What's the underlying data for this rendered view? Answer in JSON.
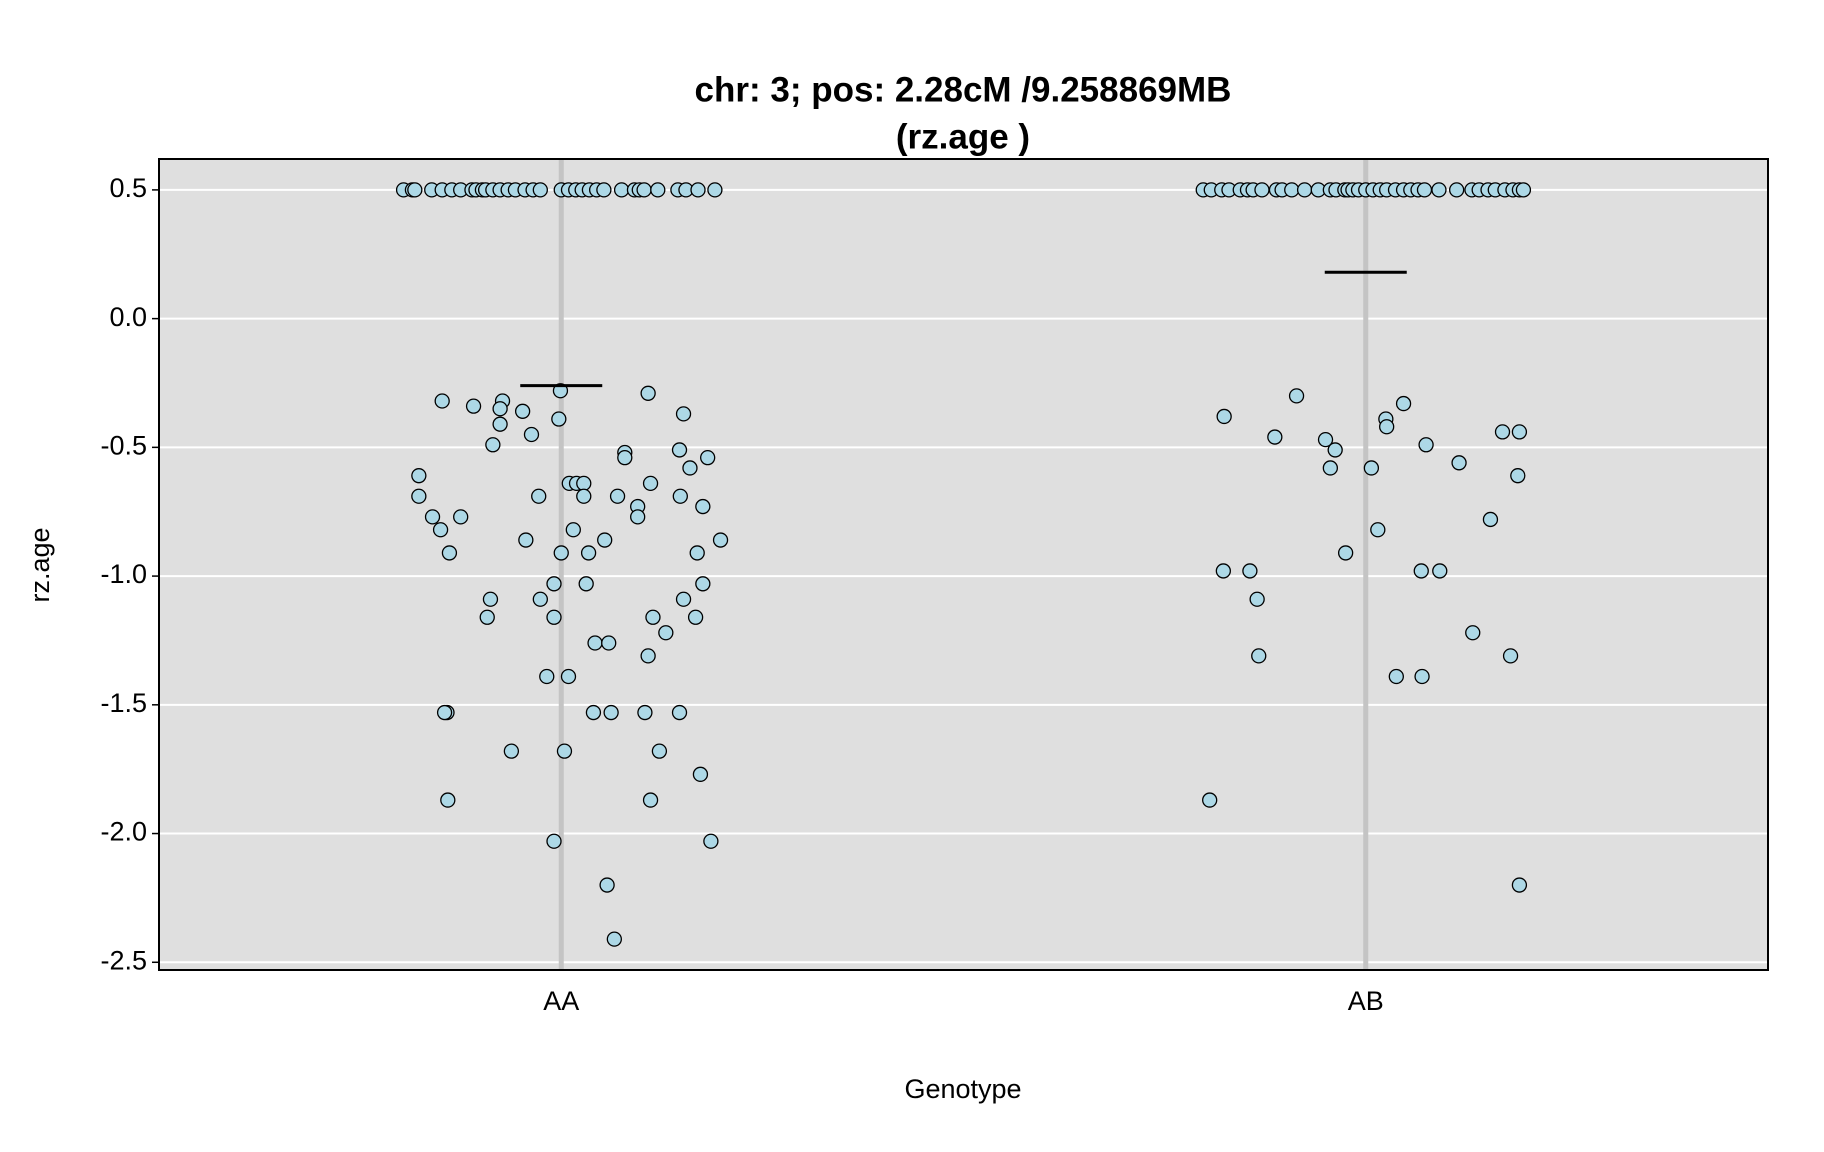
{
  "chart_data": {
    "type": "scatter",
    "title": [
      "chr: 3; pos: 2.28cM /9.258869MB",
      "(rz.age )"
    ],
    "x_label": "Genotype",
    "y_label": "rz.age",
    "xlim": [
      0.5,
      2.5
    ],
    "xticks": [
      {
        "value": 1,
        "label": "AA"
      },
      {
        "value": 2,
        "label": "AB"
      }
    ],
    "ylim": [
      -2.53,
      0.62
    ],
    "yticks": [
      0.5,
      {
        "value": 0,
        "label": "0.0"
      },
      -0.5,
      {
        "value": -1,
        "label": "-1.0"
      },
      -1.5,
      {
        "value": -2,
        "label": "-2.0"
      },
      -2.5
    ],
    "grid": true,
    "background": "#dfdfdf",
    "means": [
      -0.26,
      0.18
    ],
    "mean_color": "#000000",
    "series": [
      {
        "color": "#add8e6",
        "x": [
          0.804,
          0.815,
          0.818,
          0.839,
          0.852,
          0.864,
          0.875,
          0.889,
          0.894,
          0.902,
          0.906,
          0.915,
          0.924,
          0.934,
          0.943,
          0.955,
          0.965,
          0.974,
          1.0,
          1.009,
          1.018,
          1.026,
          1.035,
          1.044,
          1.053,
          1.075,
          1.091,
          1.097,
          1.103,
          1.12,
          1.145,
          1.155,
          1.17,
          1.191,
          0.852,
          0.823,
          0.823,
          0.84,
          0.85,
          0.875,
          0.861,
          0.891,
          0.927,
          0.924,
          0.924,
          0.915,
          0.952,
          0.963,
          0.999,
          0.997,
          0.972,
          0.956,
          0.912,
          0.908,
          0.974,
          0.991,
          0.991,
          1.0,
          1.015,
          1.01,
          1.019,
          1.028,
          1.028,
          1.034,
          1.031,
          1.054,
          1.042,
          1.059,
          0.982,
          1.009,
          1.04,
          1.062,
          0.858,
          0.855,
          0.938,
          1.004,
          0.859,
          0.991,
          1.057,
          1.066,
          1.079,
          1.079,
          1.07,
          1.095,
          1.095,
          1.108,
          1.111,
          1.114,
          1.13,
          1.108,
          1.104,
          1.122,
          1.111,
          1.152,
          1.147,
          1.16,
          1.182,
          1.148,
          1.176,
          1.198,
          1.169,
          1.176,
          1.152,
          1.167,
          1.147,
          1.173,
          1.186
        ],
        "values": [
          0.5,
          0.5,
          0.5,
          0.5,
          0.5,
          0.5,
          0.5,
          0.5,
          0.5,
          0.5,
          0.5,
          0.5,
          0.5,
          0.5,
          0.5,
          0.5,
          0.5,
          0.5,
          0.5,
          0.5,
          0.5,
          0.5,
          0.5,
          0.5,
          0.5,
          0.5,
          0.5,
          0.5,
          0.5,
          0.5,
          0.5,
          0.5,
          0.5,
          0.5,
          -0.32,
          -0.61,
          -0.69,
          -0.77,
          -0.82,
          -0.77,
          -0.91,
          -0.34,
          -0.32,
          -0.35,
          -0.41,
          -0.49,
          -0.36,
          -0.45,
          -0.28,
          -0.39,
          -0.69,
          -0.86,
          -1.09,
          -1.16,
          -1.09,
          -1.03,
          -1.16,
          -0.91,
          -0.82,
          -0.64,
          -0.64,
          -0.64,
          -0.69,
          -0.91,
          -1.03,
          -0.86,
          -1.26,
          -1.26,
          -1.39,
          -1.39,
          -1.53,
          -1.53,
          -1.53,
          -1.53,
          -1.68,
          -1.68,
          -1.87,
          -2.03,
          -2.2,
          -2.41,
          -0.52,
          -0.54,
          -0.69,
          -0.73,
          -0.77,
          -0.29,
          -0.64,
          -1.16,
          -1.22,
          -1.31,
          -1.53,
          -1.68,
          -1.87,
          -0.37,
          -0.51,
          -0.58,
          -0.54,
          -0.69,
          -0.73,
          -0.86,
          -0.91,
          -1.03,
          -1.09,
          -1.16,
          -1.53,
          -1.77,
          -2.03
        ]
      },
      {
        "color": "#add8e6",
        "x": [
          1.798,
          1.808,
          1.821,
          1.83,
          1.844,
          1.853,
          1.86,
          1.871,
          1.889,
          1.896,
          1.908,
          1.924,
          1.941,
          1.956,
          1.963,
          1.974,
          1.978,
          1.984,
          1.991,
          2.0,
          2.009,
          2.018,
          2.026,
          2.037,
          2.047,
          2.056,
          2.065,
          2.073,
          2.091,
          2.113,
          2.132,
          2.141,
          2.152,
          2.161,
          2.173,
          2.183,
          2.191,
          2.196,
          1.824,
          1.887,
          1.914,
          1.95,
          1.962,
          1.956,
          2.007,
          2.025,
          2.026,
          2.047,
          2.075,
          2.116,
          2.17,
          2.191,
          2.189,
          2.155,
          2.015,
          1.975,
          1.823,
          1.856,
          1.865,
          1.867,
          2.069,
          2.092,
          2.133,
          2.18,
          2.038,
          2.07,
          1.806,
          2.191
        ],
        "values": [
          0.5,
          0.5,
          0.5,
          0.5,
          0.5,
          0.5,
          0.5,
          0.5,
          0.5,
          0.5,
          0.5,
          0.5,
          0.5,
          0.5,
          0.5,
          0.5,
          0.5,
          0.5,
          0.5,
          0.5,
          0.5,
          0.5,
          0.5,
          0.5,
          0.5,
          0.5,
          0.5,
          0.5,
          0.5,
          0.5,
          0.5,
          0.5,
          0.5,
          0.5,
          0.5,
          0.5,
          0.5,
          0.5,
          -0.38,
          -0.46,
          -0.3,
          -0.47,
          -0.51,
          -0.58,
          -0.58,
          -0.39,
          -0.42,
          -0.33,
          -0.49,
          -0.56,
          -0.44,
          -0.44,
          -0.61,
          -0.78,
          -0.82,
          -0.91,
          -0.98,
          -0.98,
          -1.09,
          -1.31,
          -0.98,
          -0.98,
          -1.22,
          -1.31,
          -1.39,
          -1.39,
          -1.87,
          -2.2
        ]
      }
    ]
  }
}
